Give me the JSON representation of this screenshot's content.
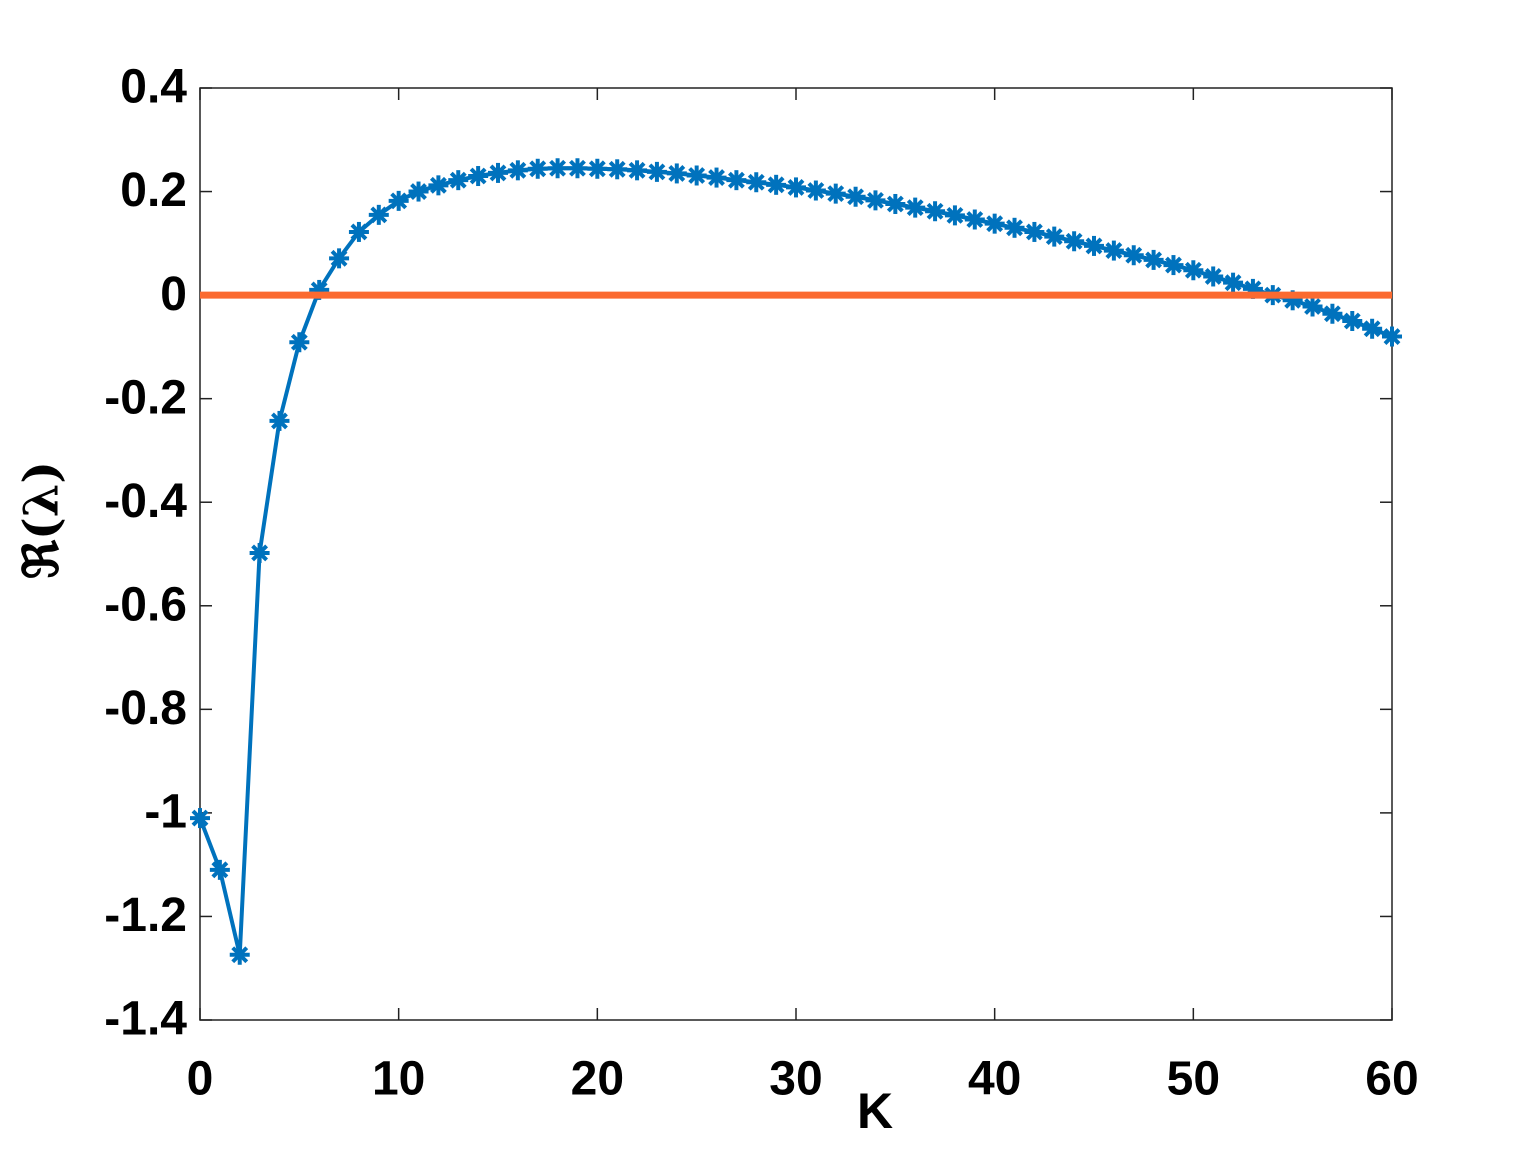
{
  "chart_data": {
    "type": "line",
    "x_label": "K",
    "y_label": "ℜ(λ)",
    "xlim": [
      0,
      60
    ],
    "ylim": [
      -1.4,
      0.4
    ],
    "xticks": [
      0,
      10,
      20,
      30,
      40,
      50,
      60
    ],
    "yticks": [
      -1.4,
      -1.2,
      -1,
      -0.8,
      -0.6,
      -0.4,
      -0.2,
      0,
      0.2,
      0.4
    ],
    "grid": false,
    "series": [
      {
        "color": "#0072bd",
        "marker": "asterisk",
        "x": [
          0,
          1,
          2,
          3,
          4,
          5,
          6,
          7,
          8,
          9,
          10,
          11,
          12,
          13,
          14,
          15,
          16,
          17,
          18,
          19,
          20,
          21,
          22,
          23,
          24,
          25,
          26,
          27,
          28,
          29,
          30,
          31,
          32,
          33,
          34,
          35,
          36,
          37,
          38,
          39,
          40,
          41,
          42,
          43,
          44,
          45,
          46,
          47,
          48,
          49,
          50,
          51,
          52,
          53,
          54,
          55,
          56,
          57,
          58,
          59,
          60
        ],
        "values": [
          -1.01,
          -1.11,
          -1.274,
          -0.498,
          -0.243,
          -0.091,
          0.01,
          0.071,
          0.122,
          0.155,
          0.182,
          0.2,
          0.212,
          0.222,
          0.23,
          0.236,
          0.241,
          0.244,
          0.245,
          0.245,
          0.244,
          0.243,
          0.241,
          0.238,
          0.235,
          0.231,
          0.227,
          0.222,
          0.218,
          0.213,
          0.208,
          0.202,
          0.196,
          0.19,
          0.183,
          0.176,
          0.169,
          0.162,
          0.154,
          0.146,
          0.138,
          0.13,
          0.122,
          0.113,
          0.104,
          0.095,
          0.086,
          0.077,
          0.068,
          0.058,
          0.048,
          0.036,
          0.024,
          0.012,
          0.0,
          -0.01,
          -0.022,
          -0.036,
          -0.05,
          -0.065,
          -0.08
        ]
      },
      {
        "color": "#fb6a30",
        "marker": "none",
        "x": [
          0,
          60
        ],
        "values": [
          0,
          0
        ]
      }
    ]
  }
}
